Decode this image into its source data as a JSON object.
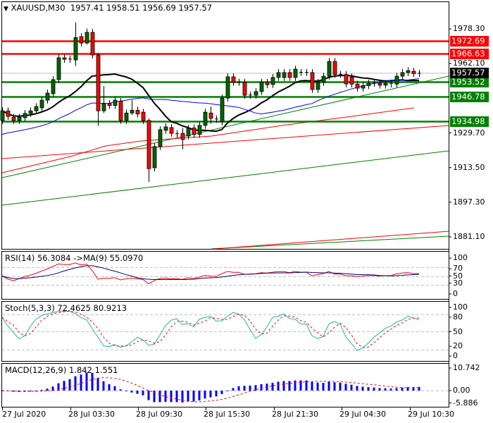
{
  "header": {
    "symbol": "XAUUSD,M30",
    "open": "1957.41",
    "high": "1958.51",
    "low": "1956.69",
    "close": "1957.57"
  },
  "price_axis": {
    "ticks": [
      "1978.30",
      "1962.10",
      "1929.70",
      "1913.50",
      "1897.30",
      "1881.10"
    ]
  },
  "levels": [
    {
      "price": 1972.69,
      "label": "1972.69",
      "color": "#ff0000"
    },
    {
      "price": 1966.63,
      "label": "1966.63",
      "color": "#ff0000"
    },
    {
      "price": 1953.52,
      "label": "1953.52",
      "color": "#008000"
    },
    {
      "price": 1946.78,
      "label": "1946.78",
      "color": "#008000"
    },
    {
      "price": 1934.98,
      "label": "1934.98",
      "color": "#008000"
    }
  ],
  "current_price": {
    "price": 1957.57,
    "label": "1957.57"
  },
  "candles": [
    [
      1935.5,
      1940
    ],
    [
      1940,
      1937.4
    ],
    [
      1937,
      1935.5
    ],
    [
      1935.5,
      1937
    ],
    [
      1936.8,
      1938.8
    ],
    [
      1938.8,
      1940
    ],
    [
      1940,
      1942
    ],
    [
      1941.4,
      1945
    ],
    [
      1945,
      1948.3
    ],
    [
      1948,
      1954.6
    ],
    [
      1954.6,
      1964.8
    ],
    [
      1964.8,
      1964.1
    ],
    [
      1964.1,
      1964.2
    ],
    [
      1963.8,
      1974.3,
      1981.3,
      1961
    ],
    [
      1974.7,
      1971.7
    ],
    [
      1971.7,
      1976.7,
      1978.5,
      1971
    ],
    [
      1976.7,
      1966.1
    ],
    [
      1966.1,
      1940,
      1967,
      1933
    ],
    [
      1940,
      1943.4,
      1951.6,
      1939
    ],
    [
      1943.4,
      1942.5
    ],
    [
      1942.5,
      1945
    ],
    [
      1944.4,
      1935.5
    ],
    [
      1935.5,
      1939
    ],
    [
      1939,
      1940.3,
      1945,
      1938
    ],
    [
      1940.3,
      1938.5
    ],
    [
      1939.4,
      1935.5
    ],
    [
      1935.5,
      1913,
      1936.5,
      1906.8
    ],
    [
      1913.4,
      1923.3
    ],
    [
      1923.3,
      1931.2
    ],
    [
      1930.9,
      1932.5
    ],
    [
      1932.2,
      1929.5
    ],
    [
      1929.2,
      1929.3
    ],
    [
      1929.5,
      1926.6,
      1932,
      1922
    ],
    [
      1928.2,
      1931.8
    ],
    [
      1932,
      1929
    ],
    [
      1929,
      1933.2
    ],
    [
      1933.2,
      1939.4
    ],
    [
      1939,
      1936.5,
      1942,
      1934
    ],
    [
      1936,
      1936.2
    ],
    [
      1934.8,
      1946
    ],
    [
      1946,
      1955.9
    ],
    [
      1955.9,
      1953.3
    ],
    [
      1953.3,
      1953.4
    ],
    [
      1953.3,
      1947.3
    ],
    [
      1947.3,
      1947.4
    ],
    [
      1947.3,
      1949
    ],
    [
      1949,
      1953.3
    ],
    [
      1953.3,
      1952.2
    ],
    [
      1952.3,
      1955.6
    ],
    [
      1955.6,
      1957.9
    ],
    [
      1955.6,
      1957.9
    ],
    [
      1957.9,
      1955.6
    ],
    [
      1955.6,
      1959.5
    ],
    [
      1957.9,
      1958
    ],
    [
      1957.9,
      1958
    ],
    [
      1957.9,
      1950
    ],
    [
      1950,
      1953.3
    ],
    [
      1953.3,
      1956.2
    ],
    [
      1956.2,
      1963.1
    ],
    [
      1963.1,
      1957
    ],
    [
      1957,
      1957.1
    ],
    [
      1957,
      1952.6
    ],
    [
      1955.8,
      1952.5
    ],
    [
      1952.5,
      1950.6
    ],
    [
      1950.6,
      1951.8
    ],
    [
      1951.8,
      1952.9
    ],
    [
      1952.9,
      1953
    ],
    [
      1952.9,
      1952
    ],
    [
      1952,
      1952.9
    ],
    [
      1952.5,
      1952.9
    ],
    [
      1952.5,
      1956.2
    ],
    [
      1956.2,
      1957.9
    ],
    [
      1957.9,
      1958.8
    ],
    [
      1958.5,
      1957.4
    ],
    [
      1957.4,
      1957.57
    ]
  ],
  "rsi": {
    "label": "RSI(14) 56.3084  ->MA(9) 55.0970",
    "ticks": [
      "100",
      "70",
      "50",
      "30",
      "0"
    ]
  },
  "stoch": {
    "label": "Stoch(5,3,3) 72.4625 80.9213",
    "ticks": [
      "100",
      "80",
      "50",
      "20",
      "0"
    ]
  },
  "macd": {
    "label": "MACD(12,26,9) 1.842 1.551",
    "ticks": [
      "10.742",
      "0.00",
      "-5.886"
    ]
  },
  "time_axis": [
    "27 Jul 2020",
    "28 Jul 03:30",
    "28 Jul 09:30",
    "28 Jul 15:30",
    "28 Jul 21:30",
    "29 Jul 04:30",
    "29 Jul 10:30"
  ],
  "colors": {
    "bull": "#006400",
    "bear": "#ff0000",
    "ma_fast": "#000000",
    "ma_slow": "#0000ff",
    "stoch_main": "#20b2aa",
    "macd_bars": "#0000ff"
  }
}
